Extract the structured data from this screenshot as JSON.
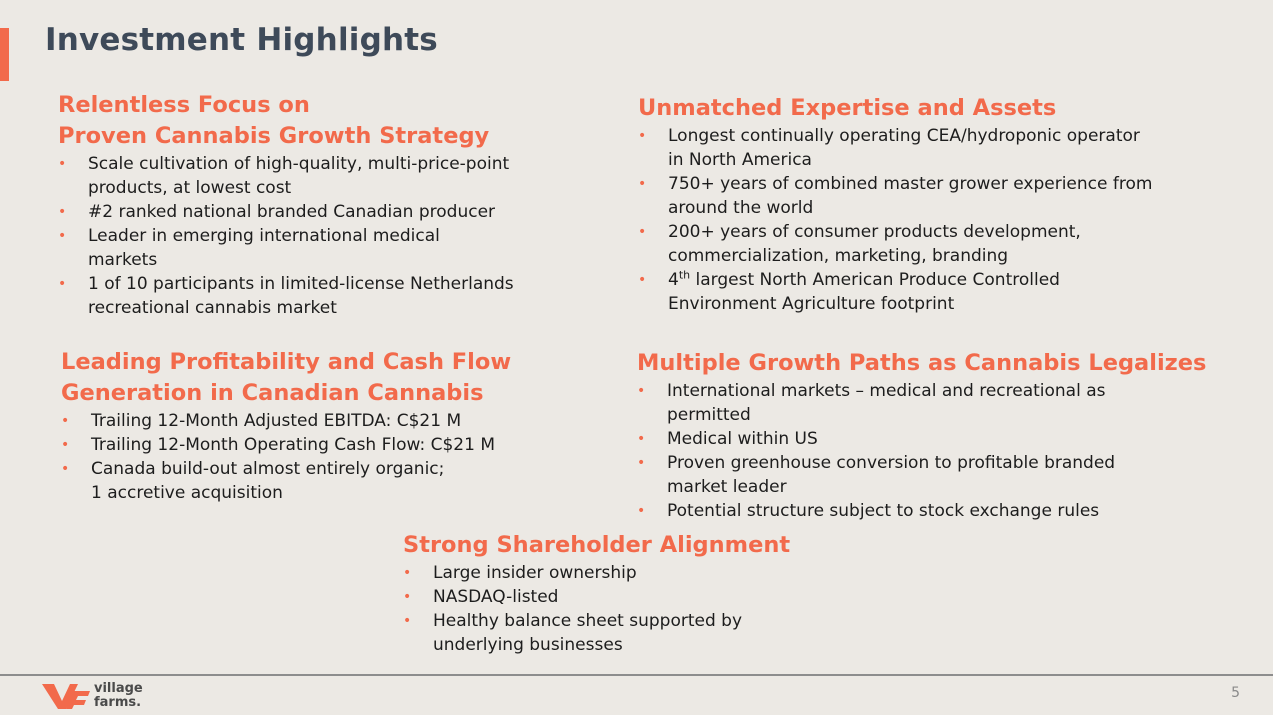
{
  "slide": {
    "title": "Investment Highlights",
    "page_number": "5"
  },
  "sections": [
    {
      "heading_line1": "Relentless Focus on",
      "heading_line2": "Proven Cannabis Growth Strategy",
      "bullets": [
        {
          "line1": "Scale cultivation of high-quality, multi-price-point",
          "line2": "products, at lowest cost"
        },
        {
          "line1": "#2 ranked national branded Canadian producer"
        },
        {
          "line1": "Leader in emerging international medical",
          "line2": "markets"
        },
        {
          "line1": "1 of 10 participants in limited-license Netherlands",
          "line2": "recreational cannabis market"
        }
      ]
    },
    {
      "heading_line1": "Unmatched Expertise and Assets",
      "bullets": [
        {
          "line1": "Longest continually operating CEA/hydroponic operator",
          "line2": "in North America"
        },
        {
          "line1": "750+ years of combined master grower experience from",
          "line2": "around the world"
        },
        {
          "line1": "200+ years of consumer products development,",
          "line2": "commercialization, marketing, branding"
        },
        {
          "pre": "4",
          "sup": "th",
          "post": " largest North American Produce Controlled",
          "line2": "Environment Agriculture footprint"
        }
      ]
    },
    {
      "heading_line1": "Leading Profitability and Cash Flow",
      "heading_line2": "Generation in Canadian Cannabis",
      "bullets": [
        {
          "line1": "Trailing 12-Month Adjusted EBITDA: C$21 M"
        },
        {
          "line1": "Trailing 12-Month Operating Cash Flow: C$21 M"
        },
        {
          "line1": "Canada build-out almost entirely organic;",
          "line2": "1 accretive acquisition"
        }
      ]
    },
    {
      "heading_line1": "Multiple Growth Paths as Cannabis Legalizes",
      "bullets": [
        {
          "line1": "International markets – medical and recreational as",
          "line2": "permitted"
        },
        {
          "line1": "Medical within US"
        },
        {
          "line1": "Proven greenhouse conversion to profitable branded",
          "line2": "market leader"
        },
        {
          "line1": "Potential structure subject to stock exchange rules"
        }
      ]
    },
    {
      "heading_line1": "Strong Shareholder Alignment",
      "bullets": [
        {
          "line1": "Large insider ownership"
        },
        {
          "line1": "NASDAQ-listed"
        },
        {
          "line1": "Healthy balance sheet supported by",
          "line2": "underlying businesses"
        }
      ]
    }
  ],
  "bullet_glyph": "•",
  "footer": {
    "logo_text": "village\nfarms.",
    "logo_icon": "village-farms-logo-icon"
  },
  "colors": {
    "accent": "#f26a4b",
    "title": "#3e4a59",
    "background": "#ece9e4"
  }
}
